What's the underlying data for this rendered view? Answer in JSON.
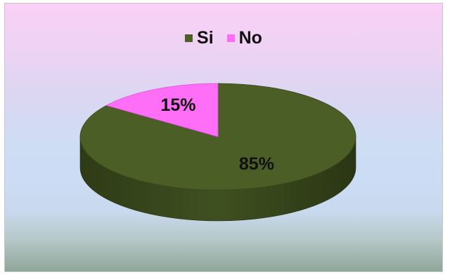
{
  "chart_data": {
    "type": "pie",
    "style": "3d",
    "legend_position": "top",
    "series": [
      {
        "categories": [
          "Si",
          "No"
        ],
        "values": [
          85,
          15
        ],
        "labels": [
          "85%",
          "15%"
        ],
        "colors": [
          "#4a5e25",
          "#ff6ef7"
        ]
      }
    ]
  }
}
